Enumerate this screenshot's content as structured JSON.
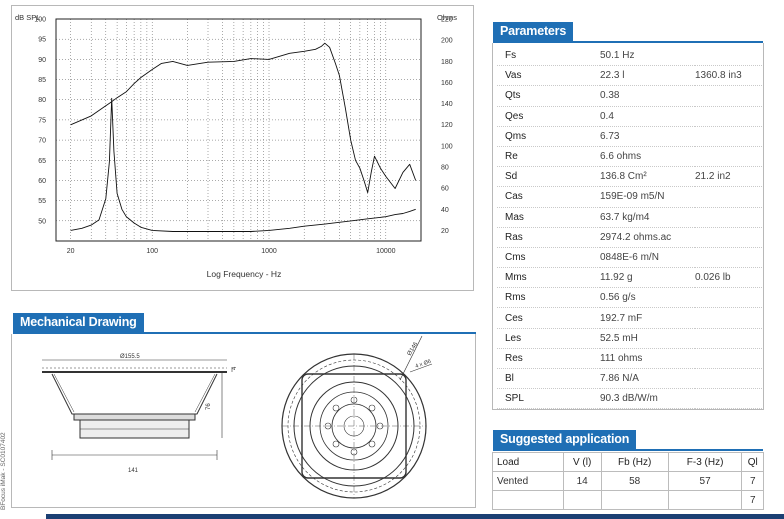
{
  "chart": {
    "left_axis_title": "dB SPL",
    "right_axis_title": "Ohms",
    "x_axis_title": "Log Frequency - Hz",
    "left_ticks": [
      "100",
      "95",
      "90",
      "85",
      "80",
      "75",
      "70",
      "65",
      "60",
      "55",
      "50"
    ],
    "right_ticks": [
      "220",
      "200",
      "180",
      "160",
      "140",
      "120",
      "100",
      "80",
      "60",
      "40",
      "20"
    ],
    "x_ticks": [
      "20",
      "100",
      "1000",
      "10000"
    ]
  },
  "chart_data": {
    "type": "line",
    "xlabel": "Log Frequency - Hz",
    "ylabel": "dB SPL",
    "y2label": "Ohms",
    "xscale": "log",
    "xlim": [
      15,
      20000
    ],
    "ylim": [
      45,
      100
    ],
    "y2lim": [
      10,
      220
    ],
    "grid": true,
    "series": [
      {
        "axis": "left",
        "x": [
          20,
          30,
          40,
          45,
          50,
          60,
          70,
          80,
          100,
          120,
          150,
          200,
          300,
          500,
          700,
          1000,
          1500,
          2000,
          2500,
          2800,
          3000,
          3300,
          3700,
          4000,
          4500,
          5000,
          5500,
          6000,
          6500,
          7000,
          7500,
          8000,
          9000,
          10000,
          12000,
          14000,
          16000,
          18000
        ],
        "y": [
          73.8,
          76,
          78.5,
          79.5,
          80.5,
          82,
          84,
          85.5,
          87.5,
          89,
          89.5,
          88.5,
          89.3,
          89.5,
          90.2,
          90,
          91.5,
          92,
          92.5,
          93.2,
          94,
          93,
          89,
          86,
          78,
          70,
          65,
          63,
          60,
          57,
          62,
          66,
          63,
          61,
          58,
          62,
          64,
          60
        ]
      },
      {
        "axis": "right",
        "x": [
          20,
          25,
          30,
          35,
          40,
          43,
          45,
          47,
          50,
          55,
          60,
          70,
          80,
          100,
          150,
          200,
          300,
          500,
          700,
          1000,
          1500,
          2000,
          3000,
          5000,
          7000,
          10000,
          12000,
          14000,
          16000,
          18000
        ],
        "y": [
          20,
          22,
          25,
          30,
          50,
          85,
          145,
          95,
          55,
          40,
          33,
          27,
          23,
          20,
          19,
          19,
          19,
          19,
          19,
          20,
          22,
          24,
          26,
          29,
          31,
          33,
          35,
          36,
          38,
          40
        ]
      }
    ]
  },
  "parameters": {
    "title": "Parameters",
    "rows": [
      {
        "name": "Fs",
        "value": "50.1 Hz",
        "alt": ""
      },
      {
        "name": "Vas",
        "value": "22.3 l",
        "alt": "1360.8 in3"
      },
      {
        "name": "Qts",
        "value": "0.38",
        "alt": ""
      },
      {
        "name": "Qes",
        "value": "0.4",
        "alt": ""
      },
      {
        "name": "Qms",
        "value": "6.73",
        "alt": ""
      },
      {
        "name": "Re",
        "value": "6.6 ohms",
        "alt": ""
      },
      {
        "name": "Sd",
        "value": "136.8 Cm²",
        "alt": "21.2 in2"
      },
      {
        "name": "Cas",
        "value": "159E-09 m5/N",
        "alt": ""
      },
      {
        "name": "Mas",
        "value": "63.7 kg/m4",
        "alt": ""
      },
      {
        "name": "Ras",
        "value": "2974.2 ohms.ac",
        "alt": ""
      },
      {
        "name": "Cms",
        "value": "0848E-6 m/N",
        "alt": ""
      },
      {
        "name": "Mms",
        "value": "11.92 g",
        "alt": "0.026 lb"
      },
      {
        "name": "Rms",
        "value": "0.56 g/s",
        "alt": ""
      },
      {
        "name": "Ces",
        "value": "192.7 mF",
        "alt": ""
      },
      {
        "name": "Les",
        "value": "52.5 mH",
        "alt": ""
      },
      {
        "name": "Res",
        "value": "111 ohms",
        "alt": ""
      },
      {
        "name": "Bl",
        "value": "7.86 N/A",
        "alt": ""
      },
      {
        "name": "SPL",
        "value": "90.3 dB/W/m",
        "alt": ""
      }
    ]
  },
  "mechanical": {
    "title": "Mechanical Drawing",
    "dims": {
      "outer_dia": "Ø155.5",
      "height": "76",
      "depth": "141",
      "flange": "4",
      "bolt_circle": "Ø146",
      "holes": "4 x Ø6"
    }
  },
  "application": {
    "title": "Suggested application",
    "headers": [
      "Load",
      "V (l)",
      "Fb (Hz)",
      "F-3 (Hz)",
      "Ql"
    ],
    "rows": [
      [
        "Vented",
        "14",
        "58",
        "57",
        "7"
      ],
      [
        "",
        "",
        "",
        "",
        "7"
      ]
    ]
  },
  "side_text": "BFocus iMak - SC0107402"
}
